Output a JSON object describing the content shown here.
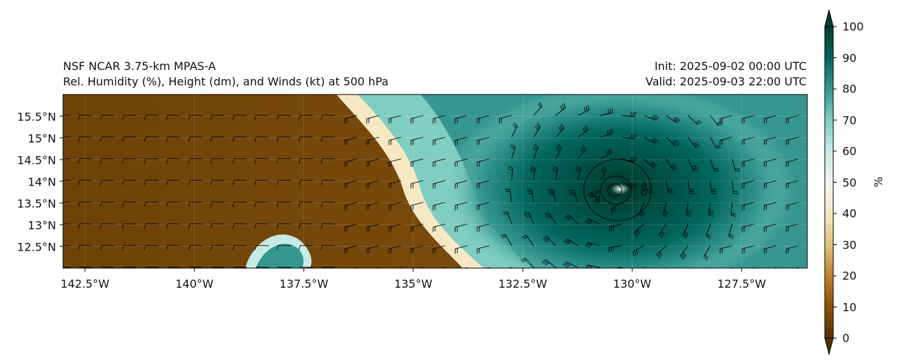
{
  "title": {
    "model": "NSF NCAR 3.75-km MPAS-A",
    "field": "Rel. Humidity (%), Height (dm), and Winds (kt) at 500 hPa",
    "init": "Init: 2025-09-02 00:00 UTC",
    "valid": "Valid: 2025-09-03 22:00 UTC"
  },
  "map": {
    "lon_range": [
      -143.0,
      -126.0
    ],
    "lat_range": [
      12.0,
      16.0
    ],
    "lat_ticks": [
      {
        "value": 15.5,
        "label": "15.5°N"
      },
      {
        "value": 15.0,
        "label": "15°N"
      },
      {
        "value": 14.5,
        "label": "14.5°N"
      },
      {
        "value": 14.0,
        "label": "14°N"
      },
      {
        "value": 13.5,
        "label": "13.5°N"
      },
      {
        "value": 13.0,
        "label": "13°N"
      },
      {
        "value": 12.5,
        "label": "12.5°N"
      }
    ],
    "lon_ticks": [
      {
        "value": -142.5,
        "label": "142.5°W"
      },
      {
        "value": -140.0,
        "label": "140°W"
      },
      {
        "value": -137.5,
        "label": "137.5°W"
      },
      {
        "value": -135.0,
        "label": "135°W"
      },
      {
        "value": -132.5,
        "label": "132.5°W"
      },
      {
        "value": -130.0,
        "label": "130°W"
      },
      {
        "value": -127.5,
        "label": "127.5°W"
      }
    ],
    "storm_center": {
      "lon": -130.4,
      "lat": 13.8
    },
    "height_contours": [
      {
        "label": "576"
      },
      {
        "label": "582"
      }
    ]
  },
  "colorbar": {
    "unit": "%",
    "ticks": [
      "0",
      "10",
      "20",
      "30",
      "40",
      "50",
      "60",
      "70",
      "80",
      "90",
      "100"
    ],
    "colors": [
      "#543005",
      "#8c510a",
      "#bf812d",
      "#dfc27d",
      "#f6e8c3",
      "#f5f5f5",
      "#c7eae5",
      "#80cdc1",
      "#35978f",
      "#01665e",
      "#003c30"
    ]
  }
}
